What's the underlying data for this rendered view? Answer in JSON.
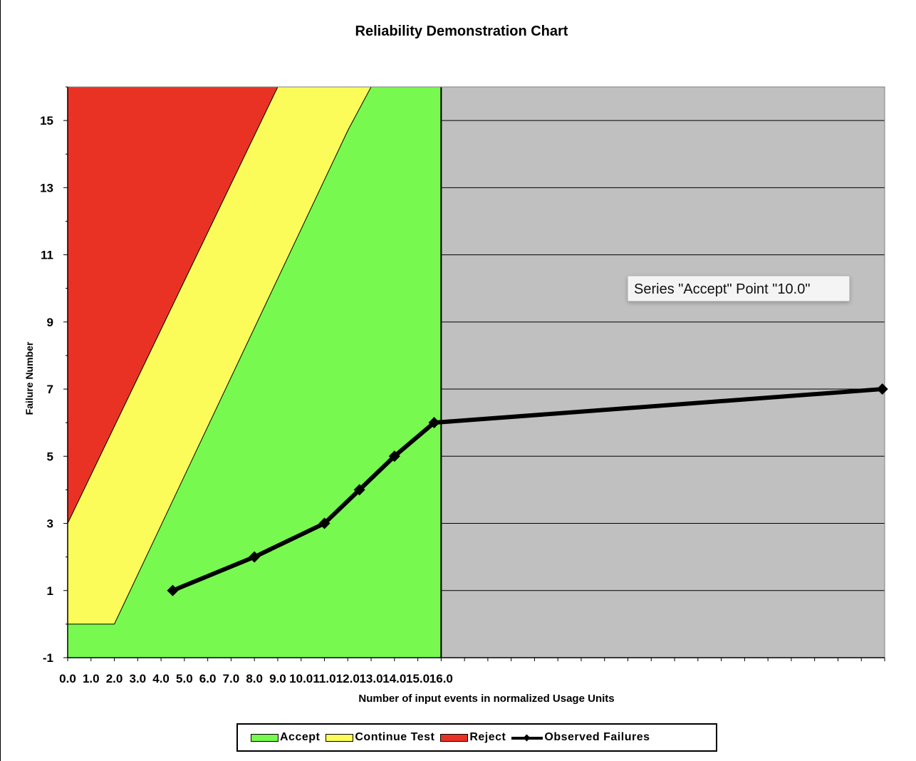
{
  "chart_data": {
    "type": "area",
    "title": "Reliability Demonstration Chart",
    "xlabel": "Number of input events in normalized Usage Units",
    "ylabel": "Failure Number",
    "xlim": [
      0,
      35
    ],
    "ylim": [
      -1,
      16
    ],
    "x_tick_labels": [
      "0.0",
      "1.0",
      "2.0",
      "3.0",
      "4.0",
      "5.0",
      "6.0",
      "7.0",
      "8.0",
      "9.0",
      "10.0",
      "11.0",
      "12.0",
      "13.0",
      "14.0",
      "15.0",
      "16.0"
    ],
    "y_tick_labels": [
      "-1",
      "1",
      "3",
      "5",
      "7",
      "9",
      "11",
      "13",
      "15"
    ],
    "regions": {
      "accept_end_x": 16,
      "continue_boundary": [
        [
          0,
          0
        ],
        [
          2,
          0
        ],
        [
          12,
          14.7
        ],
        [
          13,
          16
        ]
      ],
      "reject_boundary": [
        [
          0,
          3
        ],
        [
          9,
          16
        ]
      ]
    },
    "series": [
      {
        "name": "Accept",
        "color": "#77f94f"
      },
      {
        "name": "Continue Test",
        "color": "#fbfb5a"
      },
      {
        "name": "Reject",
        "color": "#e93224"
      },
      {
        "name": "Observed Failures",
        "color": "#000000",
        "points": [
          [
            4.5,
            1
          ],
          [
            8,
            2
          ],
          [
            11,
            3
          ],
          [
            12.5,
            4
          ],
          [
            14,
            5
          ],
          [
            15.7,
            6
          ],
          [
            34.9,
            7
          ]
        ]
      }
    ],
    "unplotted_area_color": "#c0c0c0",
    "grid": "horizontal",
    "legend_position": "bottom"
  },
  "tooltip": {
    "text": "Series \"Accept\" Point \"10.0\""
  },
  "legend": {
    "items": [
      {
        "label": "Accept",
        "color": "#77f94f"
      },
      {
        "label": "Continue Test",
        "color": "#fbfb5a"
      },
      {
        "label": "Reject",
        "color": "#e93224"
      },
      {
        "label": "Observed Failures",
        "color": "#000000"
      }
    ]
  }
}
